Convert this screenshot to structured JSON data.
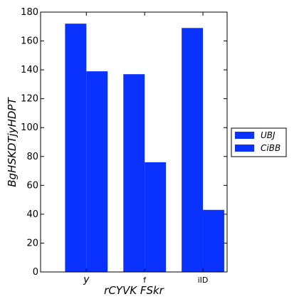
{
  "chart_data": {
    "type": "bar",
    "categories": [
      "y",
      "f",
      "iID"
    ],
    "series": [
      {
        "name": "UBJ",
        "values": [
          172,
          137,
          169
        ],
        "color": "#0a32ff"
      },
      {
        "name": "CiBB",
        "values": [
          139,
          76,
          43
        ],
        "color": "#0a32ff"
      }
    ],
    "xlabel": "rCYVK FSkr",
    "ylabel": "BgHSKDTjyHDPT",
    "ylim": [
      0,
      180
    ],
    "yticks": [
      0,
      20,
      40,
      60,
      80,
      100,
      120,
      140,
      160,
      180
    ],
    "grid": false,
    "legend": "right"
  }
}
